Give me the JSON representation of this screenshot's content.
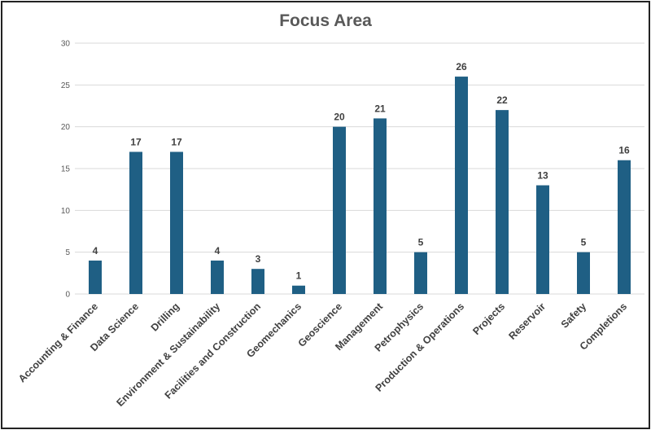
{
  "chart_data": {
    "type": "bar",
    "title": "Focus Area",
    "categories": [
      "Accounting & Finance",
      "Data Science",
      "Drilling",
      "Environment & Sustainability",
      "Facilities and Construction",
      "Geomechanics",
      "Geoscience",
      "Management",
      "Petrophysics",
      "Production & Operations",
      "Projects",
      "Reservoir",
      "Safety",
      "Completions"
    ],
    "values": [
      4,
      17,
      17,
      4,
      3,
      1,
      20,
      21,
      5,
      26,
      22,
      13,
      5,
      16
    ],
    "ylim": [
      0,
      30
    ],
    "yticks": [
      0,
      5,
      10,
      15,
      20,
      25,
      30
    ],
    "grid": true,
    "data_labels": true,
    "bar_color": "#1f5f84",
    "grid_color": "#d9d9d9"
  }
}
